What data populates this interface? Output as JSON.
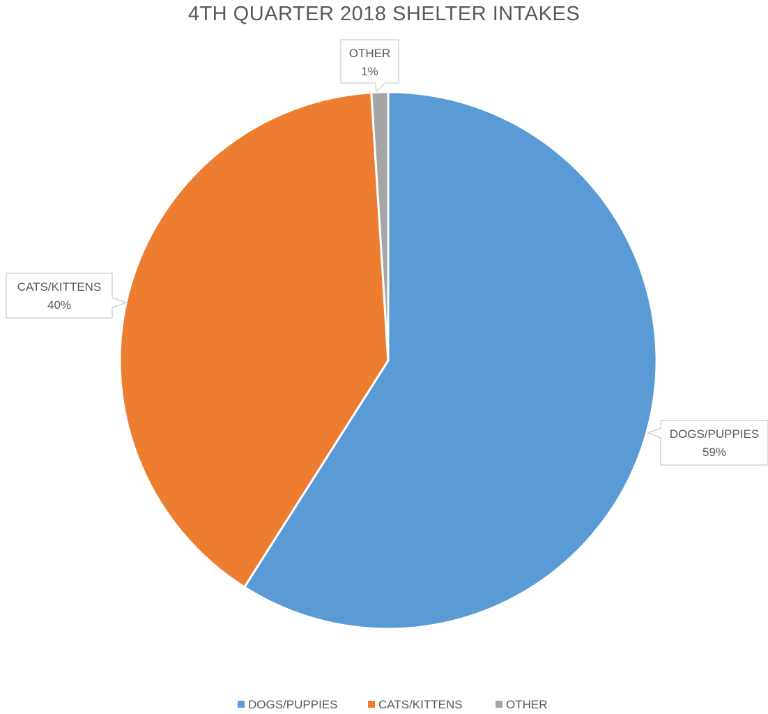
{
  "chart_data": {
    "type": "pie",
    "title": "4TH QUARTER 2018 SHELTER INTAKES",
    "categories": [
      "DOGS/PUPPIES",
      "CATS/KITTENS",
      "OTHER"
    ],
    "values": [
      59,
      40,
      1
    ],
    "units": "%",
    "data_labels": [
      {
        "name": "DOGS/PUPPIES",
        "value": "59%"
      },
      {
        "name": "CATS/KITTENS",
        "value": "40%"
      },
      {
        "name": "OTHER",
        "value": "1%"
      }
    ],
    "colors": [
      "#5B9BD5",
      "#ED7D31",
      "#A5A5A5"
    ],
    "legend": {
      "placement": "bottom",
      "items": [
        "DOGS/PUPPIES",
        "CATS/KITTENS",
        "OTHER"
      ]
    }
  }
}
